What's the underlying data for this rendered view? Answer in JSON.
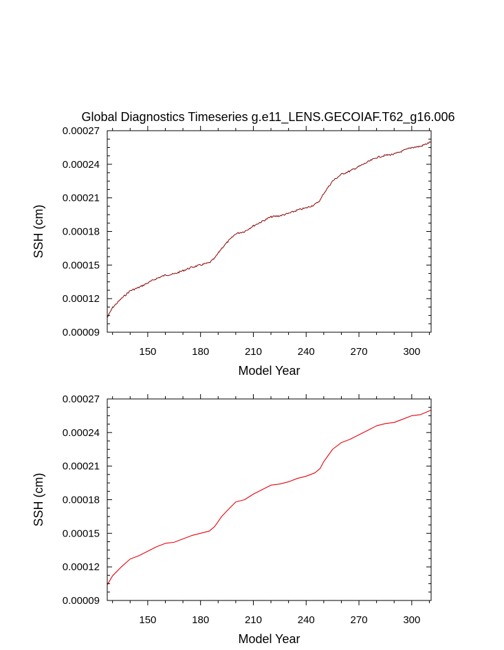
{
  "figure_title": "Global Diagnostics Timeseries g.e11_LENS.GECOIAF.T62_g16.006",
  "chart_data": [
    {
      "type": "line",
      "title": "Global Diagnostics Timeseries g.e11_LENS.GECOIAF.T62_g16.006",
      "xlabel": "Model Year",
      "ylabel": "SSH (cm)",
      "xlim": [
        127,
        311
      ],
      "ylim": [
        9e-05,
        0.00027
      ],
      "x_ticks": [
        150,
        180,
        210,
        240,
        270,
        300
      ],
      "x_tick_labels": [
        "150",
        "180",
        "210",
        "240",
        "270",
        "300"
      ],
      "y_ticks": [
        9e-05,
        0.00012,
        0.00015,
        0.00018,
        0.00021,
        0.00024,
        0.00027
      ],
      "y_tick_labels": [
        "0.00009",
        "0.00012",
        "0.00015",
        "0.00018",
        "0.00021",
        "0.00024",
        "0.00027"
      ],
      "grid": false,
      "color": "#8b0000",
      "noisy": true,
      "series": [
        {
          "x": [
            127,
            130,
            135,
            140,
            145,
            150,
            155,
            160,
            165,
            170,
            175,
            180,
            185,
            188,
            192,
            195,
            200,
            205,
            210,
            215,
            220,
            225,
            230,
            235,
            240,
            245,
            248,
            250,
            255,
            260,
            265,
            270,
            275,
            280,
            285,
            290,
            295,
            300,
            305,
            311
          ],
          "y": [
            0.000103,
            0.000112,
            0.00012,
            0.000127,
            0.00013,
            0.000134,
            0.000138,
            0.000141,
            0.000142,
            0.000145,
            0.000148,
            0.00015,
            0.000152,
            0.000156,
            0.000165,
            0.00017,
            0.000178,
            0.00018,
            0.000185,
            0.000189,
            0.000193,
            0.000194,
            0.000196,
            0.000199,
            0.000201,
            0.000204,
            0.000208,
            0.000214,
            0.000225,
            0.000231,
            0.000234,
            0.000238,
            0.000242,
            0.000246,
            0.000248,
            0.000249,
            0.000252,
            0.000255,
            0.000256,
            0.00026
          ]
        }
      ]
    },
    {
      "type": "line",
      "title": "",
      "xlabel": "Model Year",
      "ylabel": "SSH (cm)",
      "xlim": [
        127,
        311
      ],
      "ylim": [
        9e-05,
        0.00027
      ],
      "x_ticks": [
        150,
        180,
        210,
        240,
        270,
        300
      ],
      "x_tick_labels": [
        "150",
        "180",
        "210",
        "240",
        "270",
        "300"
      ],
      "y_ticks": [
        9e-05,
        0.00012,
        0.00015,
        0.00018,
        0.00021,
        0.00024,
        0.00027
      ],
      "y_tick_labels": [
        "0.00009",
        "0.00012",
        "0.00015",
        "0.00018",
        "0.00021",
        "0.00024",
        "0.00027"
      ],
      "grid": false,
      "color": "#e8000b",
      "noisy": false,
      "series": [
        {
          "x": [
            127,
            130,
            135,
            140,
            145,
            150,
            155,
            160,
            165,
            170,
            175,
            180,
            185,
            188,
            192,
            195,
            200,
            205,
            210,
            215,
            220,
            225,
            230,
            235,
            240,
            245,
            248,
            250,
            255,
            260,
            265,
            270,
            275,
            280,
            285,
            290,
            295,
            300,
            305,
            311
          ],
          "y": [
            0.000104,
            0.000112,
            0.00012,
            0.000127,
            0.00013,
            0.000134,
            0.000138,
            0.000141,
            0.000142,
            0.000145,
            0.000148,
            0.00015,
            0.000152,
            0.000156,
            0.000165,
            0.00017,
            0.000178,
            0.00018,
            0.000185,
            0.000189,
            0.000193,
            0.000194,
            0.000196,
            0.000199,
            0.000201,
            0.000204,
            0.000208,
            0.000214,
            0.000225,
            0.000231,
            0.000234,
            0.000238,
            0.000242,
            0.000246,
            0.000248,
            0.000249,
            0.000252,
            0.000255,
            0.000256,
            0.00026
          ]
        }
      ]
    }
  ]
}
